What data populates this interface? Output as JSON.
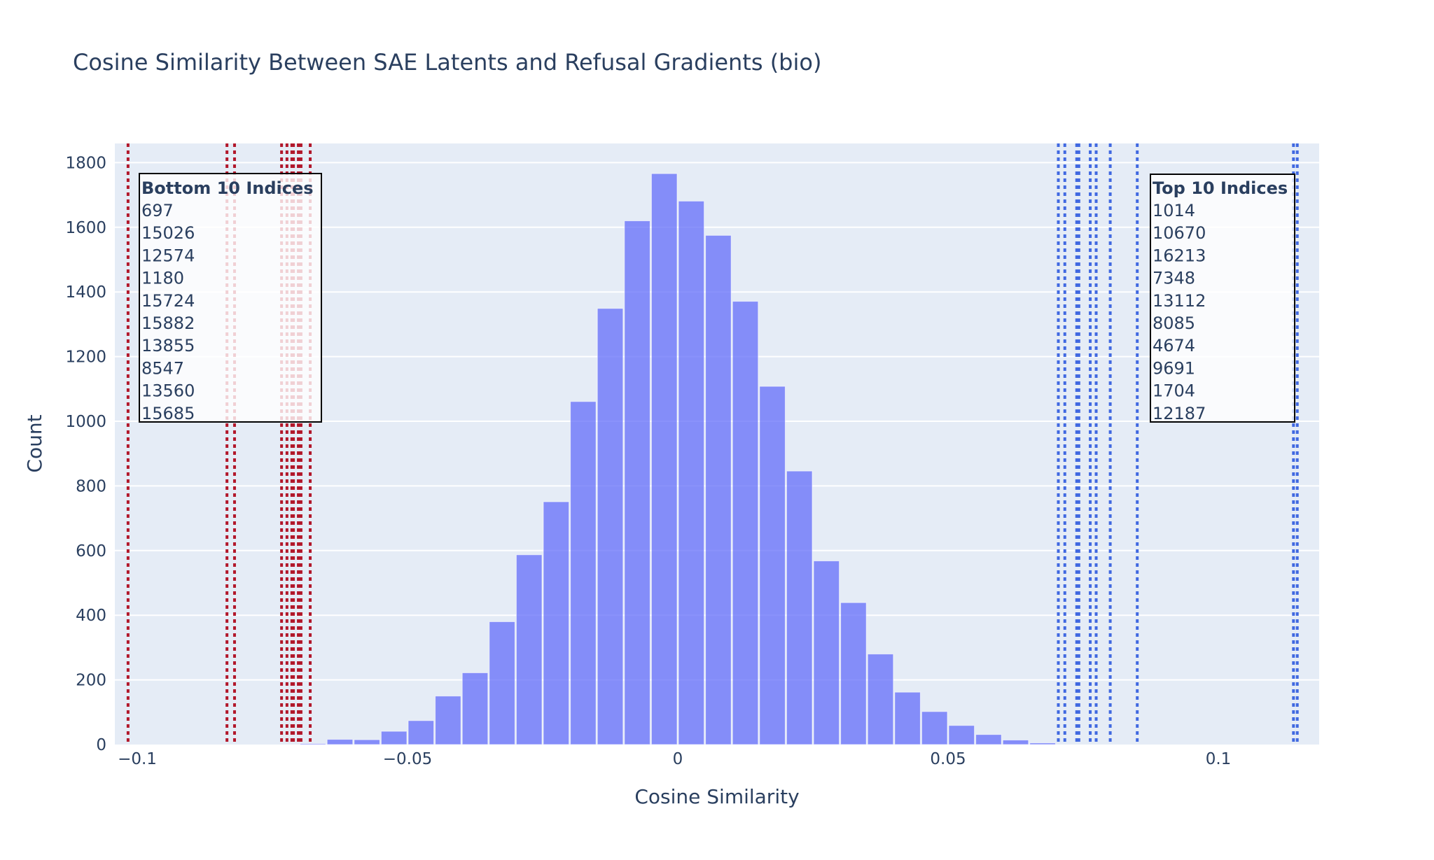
{
  "chart_data": {
    "type": "bar",
    "title": "Cosine Similarity Between SAE Latents and Refusal Gradients (bio)",
    "xlabel": "Cosine Similarity",
    "ylabel": "Count",
    "xlim": [
      -0.1041,
      0.1188
    ],
    "ylim": [
      0,
      1865
    ],
    "grid": true,
    "bin_width": 0.005,
    "x_ticks": [
      {
        "value": -0.1,
        "label": "−0.1"
      },
      {
        "value": -0.05,
        "label": "−0.05"
      },
      {
        "value": 0,
        "label": "0"
      },
      {
        "value": 0.05,
        "label": "0.05"
      },
      {
        "value": 0.1,
        "label": "0.1"
      }
    ],
    "y_ticks": [
      0,
      200,
      400,
      600,
      800,
      1000,
      1200,
      1400,
      1600,
      1800
    ],
    "bin_centers": [
      -0.0675,
      -0.0625,
      -0.0575,
      -0.0525,
      -0.0475,
      -0.0425,
      -0.0375,
      -0.0325,
      -0.0275,
      -0.0225,
      -0.0175,
      -0.0125,
      -0.0075,
      -0.0025,
      0.0025,
      0.0075,
      0.0125,
      0.0175,
      0.0225,
      0.0275,
      0.0325,
      0.0375,
      0.0425,
      0.0475,
      0.0525,
      0.0575,
      0.0625,
      0.0675
    ],
    "values": [
      3,
      16,
      15,
      41,
      74,
      150,
      222,
      380,
      587,
      751,
      1061,
      1349,
      1620,
      1766,
      1681,
      1575,
      1371,
      1108,
      846,
      568,
      439,
      280,
      162,
      102,
      59,
      31,
      14,
      5
    ],
    "bar_color": "#636efa",
    "bar_opacity": 0.75,
    "plot_bg": "#e5ecf6",
    "bottom_lines": {
      "color": "#b2182b",
      "dash": "dot",
      "x": [
        -0.1017,
        -0.0834,
        -0.082,
        -0.0733,
        -0.0723,
        -0.0714,
        -0.0711,
        -0.0702,
        -0.0697,
        -0.068
      ]
    },
    "top_lines": {
      "color": "#4169e1",
      "dash": "dot",
      "x": [
        0.0704,
        0.0716,
        0.0738,
        0.0742,
        0.0763,
        0.0774,
        0.08,
        0.085,
        0.1139,
        0.1146
      ]
    },
    "annotations": [
      {
        "id": "bottom",
        "header": "Bottom 10 Indices",
        "items": [
          "697",
          "15026",
          "12574",
          "1180",
          "15724",
          "15882",
          "13855",
          "8547",
          "13560",
          "15685"
        ]
      },
      {
        "id": "top",
        "header": "Top 10 Indices",
        "items": [
          "1014",
          "10670",
          "16213",
          "7348",
          "13112",
          "8085",
          "4674",
          "9691",
          "1704",
          "12187"
        ]
      }
    ]
  }
}
